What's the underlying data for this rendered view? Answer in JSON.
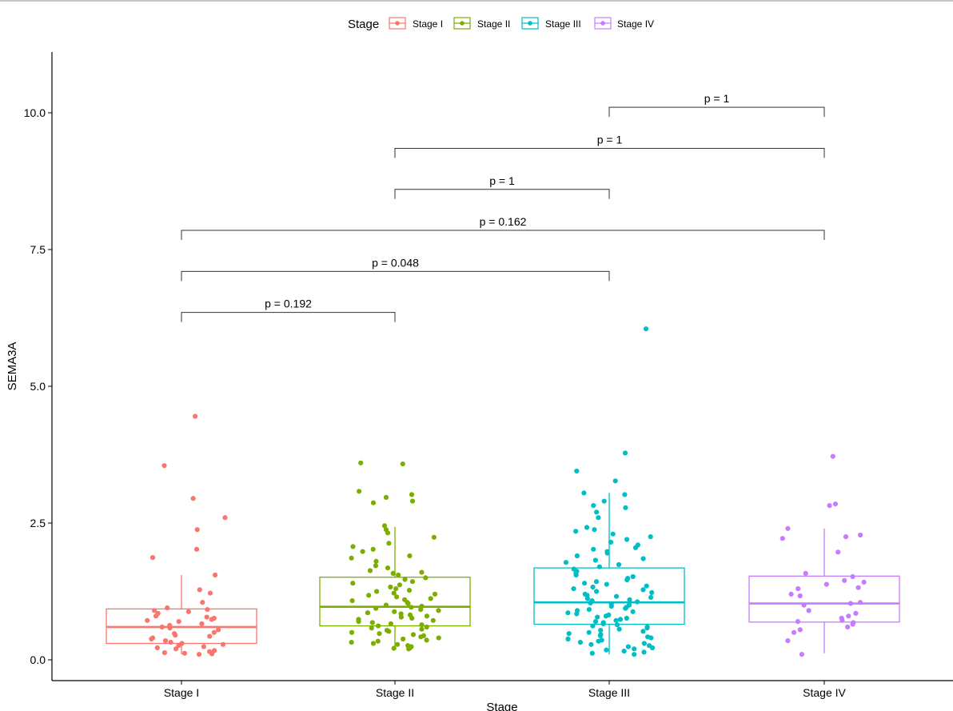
{
  "chart_data": {
    "type": "boxplot",
    "title": "",
    "xlabel": "Stage",
    "ylabel": "SEMA3A",
    "ylim": [
      -0.38,
      11.1
    ],
    "yticks": [
      "0.0",
      "2.5",
      "5.0",
      "7.5",
      "10.0"
    ],
    "ytick_values": [
      0,
      2.5,
      5,
      7.5,
      10
    ],
    "categories": [
      "Stage I",
      "Stage II",
      "Stage III",
      "Stage IV"
    ],
    "legend": {
      "title": "Stage",
      "position": "top",
      "entries": [
        "Stage I",
        "Stage II",
        "Stage III",
        "Stage IV"
      ]
    },
    "colors": {
      "Stage I": "#F8766D",
      "Stage II": "#7CAE00",
      "Stage III": "#00BFC4",
      "Stage IV": "#C77CFF"
    },
    "boxes": [
      {
        "name": "Stage I",
        "q1": 0.3,
        "median": 0.6,
        "q3": 0.93,
        "whisker_low": 0.1,
        "whisker_high": 1.55
      },
      {
        "name": "Stage II",
        "q1": 0.62,
        "median": 0.97,
        "q3": 1.51,
        "whisker_low": 0.2,
        "whisker_high": 2.43
      },
      {
        "name": "Stage III",
        "q1": 0.65,
        "median": 1.05,
        "q3": 1.68,
        "whisker_low": 0.1,
        "whisker_high": 3.05
      },
      {
        "name": "Stage IV",
        "q1": 0.69,
        "median": 1.03,
        "q3": 1.53,
        "whisker_low": 0.12,
        "whisker_high": 2.4
      }
    ],
    "points": [
      {
        "name": "Stage I",
        "values": [
          4.45,
          3.55,
          2.95,
          2.6,
          2.38,
          2.02,
          1.87,
          1.55,
          1.28,
          1.22,
          1.05,
          0.95,
          0.92,
          0.9,
          0.88,
          0.85,
          0.8,
          0.78,
          0.76,
          0.74,
          0.72,
          0.7,
          0.66,
          0.63,
          0.6,
          0.58,
          0.55,
          0.5,
          0.48,
          0.45,
          0.43,
          0.4,
          0.38,
          0.35,
          0.32,
          0.3,
          0.28,
          0.26,
          0.24,
          0.22,
          0.2,
          0.17,
          0.15,
          0.13,
          0.12,
          0.11,
          0.1
        ]
      },
      {
        "name": "Stage II",
        "values": [
          3.6,
          3.58,
          3.08,
          3.02,
          2.97,
          2.9,
          2.87,
          2.45,
          2.38,
          2.32,
          2.24,
          2.13,
          2.07,
          2.02,
          1.98,
          1.9,
          1.86,
          1.8,
          1.72,
          1.68,
          1.63,
          1.6,
          1.58,
          1.55,
          1.5,
          1.47,
          1.43,
          1.4,
          1.37,
          1.33,
          1.3,
          1.27,
          1.25,
          1.22,
          1.2,
          1.18,
          1.15,
          1.12,
          1.1,
          1.08,
          1.05,
          1.03,
          1.0,
          0.98,
          0.96,
          0.94,
          0.92,
          0.9,
          0.88,
          0.86,
          0.84,
          0.82,
          0.8,
          0.78,
          0.76,
          0.74,
          0.72,
          0.7,
          0.68,
          0.66,
          0.64,
          0.62,
          0.6,
          0.58,
          0.56,
          0.54,
          0.52,
          0.5,
          0.48,
          0.46,
          0.44,
          0.42,
          0.4,
          0.38,
          0.36,
          0.34,
          0.32,
          0.3,
          0.28,
          0.26,
          0.24,
          0.22,
          0.21,
          0.2
        ]
      },
      {
        "name": "Stage III",
        "values": [
          6.05,
          3.78,
          3.45,
          3.27,
          3.05,
          3.02,
          2.9,
          2.82,
          2.78,
          2.7,
          2.6,
          2.42,
          2.38,
          2.35,
          2.3,
          2.25,
          2.2,
          2.15,
          2.1,
          2.05,
          2.02,
          1.98,
          1.95,
          1.9,
          1.85,
          1.82,
          1.78,
          1.74,
          1.7,
          1.66,
          1.62,
          1.58,
          1.55,
          1.52,
          1.49,
          1.46,
          1.43,
          1.4,
          1.38,
          1.35,
          1.33,
          1.3,
          1.28,
          1.25,
          1.23,
          1.2,
          1.18,
          1.16,
          1.14,
          1.12,
          1.1,
          1.08,
          1.06,
          1.04,
          1.02,
          1.0,
          0.98,
          0.96,
          0.94,
          0.92,
          0.9,
          0.88,
          0.86,
          0.84,
          0.82,
          0.8,
          0.78,
          0.76,
          0.74,
          0.72,
          0.7,
          0.68,
          0.66,
          0.64,
          0.62,
          0.6,
          0.58,
          0.56,
          0.54,
          0.52,
          0.5,
          0.48,
          0.46,
          0.44,
          0.42,
          0.4,
          0.38,
          0.36,
          0.34,
          0.32,
          0.3,
          0.28,
          0.26,
          0.24,
          0.22,
          0.2,
          0.18,
          0.16,
          0.14,
          0.12,
          0.1
        ]
      },
      {
        "name": "Stage IV",
        "values": [
          3.72,
          2.85,
          2.82,
          2.4,
          2.28,
          2.25,
          2.22,
          1.97,
          1.58,
          1.52,
          1.45,
          1.42,
          1.38,
          1.32,
          1.3,
          1.2,
          1.17,
          1.05,
          1.03,
          1.0,
          0.9,
          0.85,
          0.8,
          0.76,
          0.72,
          0.7,
          0.68,
          0.65,
          0.6,
          0.55,
          0.5,
          0.35,
          0.1
        ]
      }
    ],
    "comparisons": [
      {
        "from": "Stage I",
        "to": "Stage II",
        "y": 6.35,
        "label": "p = 0.192"
      },
      {
        "from": "Stage I",
        "to": "Stage III",
        "y": 7.1,
        "label": "p = 0.048"
      },
      {
        "from": "Stage I",
        "to": "Stage IV",
        "y": 7.85,
        "label": "p = 0.162"
      },
      {
        "from": "Stage II",
        "to": "Stage III",
        "y": 8.6,
        "label": "p = 1"
      },
      {
        "from": "Stage II",
        "to": "Stage IV",
        "y": 9.35,
        "label": "p = 1"
      },
      {
        "from": "Stage III",
        "to": "Stage IV",
        "y": 10.1,
        "label": "p = 1"
      }
    ]
  }
}
